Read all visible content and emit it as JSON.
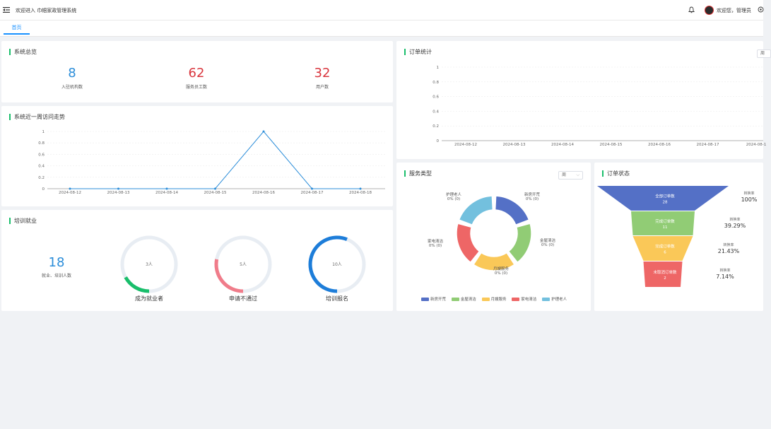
{
  "header": {
    "app_title": "欢迎进入 巾帼家政管理系统",
    "user_greeting": "欢迎您，管理员"
  },
  "tabs": [
    {
      "label": "首页"
    }
  ],
  "overview": {
    "title": "系统总览",
    "stats": [
      {
        "value": "8",
        "label": "入驻机构数",
        "color": "#2b8dd9"
      },
      {
        "value": "62",
        "label": "服务员工数",
        "color": "#d9363e"
      },
      {
        "value": "32",
        "label": "用户数",
        "color": "#d9363e"
      }
    ]
  },
  "visits": {
    "title": "系统近一周访问走势",
    "chart_data": {
      "type": "line",
      "categories": [
        "2024-08-12",
        "2024-08-13",
        "2024-08-14",
        "2024-08-15",
        "2024-08-16",
        "2024-08-17",
        "2024-08-18"
      ],
      "values": [
        0,
        0,
        0,
        0,
        1,
        0,
        0
      ],
      "ylim": [
        0,
        1
      ],
      "yticks": [
        "0",
        "0.2",
        "0.4",
        "0.6",
        "0.8",
        "1"
      ],
      "color": "#2b8dd9"
    }
  },
  "training": {
    "title": "培训就业",
    "total_value": "18",
    "total_label": "就业、培训人数",
    "gauges": [
      {
        "inner": "3人",
        "label": "成为就业者",
        "fraction": 0.17,
        "color": "#19be6b"
      },
      {
        "inner": "5人",
        "label": "申请不通过",
        "fraction": 0.28,
        "color": "#f07c8a"
      },
      {
        "inner": "10人",
        "label": "培训报名",
        "fraction": 0.56,
        "color": "#1d7dd9"
      }
    ]
  },
  "orders": {
    "title": "订单统计",
    "select_value": "周",
    "chart_data": {
      "type": "line",
      "categories": [
        "2024-08-12",
        "2024-08-13",
        "2024-08-14",
        "2024-08-15",
        "2024-08-16",
        "2024-08-17",
        "2024-08-1"
      ],
      "values": [
        0,
        0,
        0,
        0,
        0,
        0,
        0
      ],
      "ylim": [
        0,
        1
      ],
      "yticks": [
        "0",
        "0.2",
        "0.4",
        "0.6",
        "0.8",
        "1"
      ]
    }
  },
  "service_types": {
    "title": "服务类型",
    "select_value": "周",
    "chart_data": {
      "type": "pie",
      "categories": [
        "新房开荒",
        "金屋清洁",
        "月嫂服务",
        "家电清洁",
        "护理老人"
      ],
      "values": [
        0,
        0,
        0,
        0,
        0
      ],
      "slice_labels": [
        "0% (0)",
        "0% (0)",
        "0% (0)",
        "0% (0)",
        "0% (0)"
      ],
      "colors": [
        "#5470c6",
        "#91cc75",
        "#fac858",
        "#ee6666",
        "#73c0de"
      ]
    }
  },
  "order_status": {
    "title": "订单状态",
    "chart_data": {
      "type": "funnel",
      "stages": [
        {
          "label": "全部订单数",
          "value": "28",
          "rate_label": "转换率",
          "rate": "100%",
          "color": "#5470c6"
        },
        {
          "label": "完成订单数",
          "value": "11",
          "rate_label": "转换率",
          "rate": "39.29%",
          "color": "#91cc75"
        },
        {
          "label": "完成订单数",
          "value": "6",
          "rate_label": "转换率",
          "rate": "21.43%",
          "color": "#fac858"
        },
        {
          "label": "未取消订单数",
          "value": "2",
          "rate_label": "转换率",
          "rate": "7.14%",
          "color": "#ee6666"
        }
      ]
    }
  }
}
